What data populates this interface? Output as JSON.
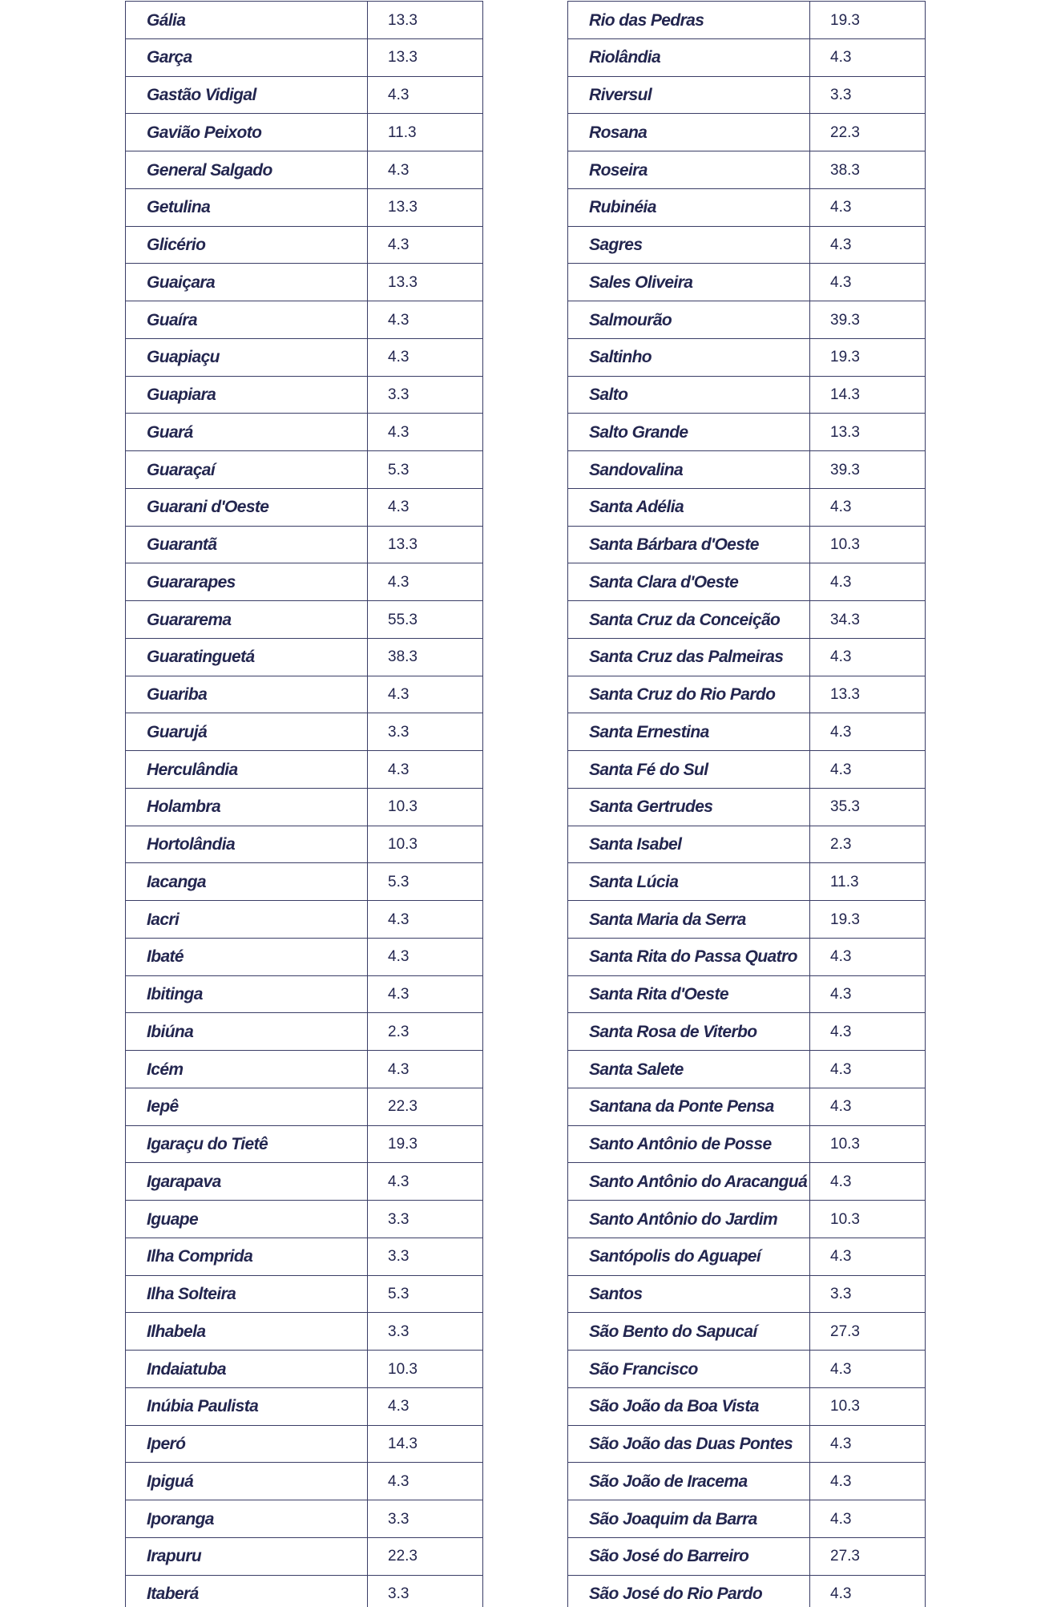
{
  "tables": [
    {
      "rows": [
        [
          "Gália",
          13.3
        ],
        [
          "Garça",
          13.3
        ],
        [
          "Gastão Vidigal",
          4.3
        ],
        [
          "Gavião Peixoto",
          11.3
        ],
        [
          "General Salgado",
          4.3
        ],
        [
          "Getulina",
          13.3
        ],
        [
          "Glicério",
          4.3
        ],
        [
          "Guaiçara",
          13.3
        ],
        [
          "Guaíra",
          4.3
        ],
        [
          "Guapiaçu",
          4.3
        ],
        [
          "Guapiara",
          3.3
        ],
        [
          "Guará",
          4.3
        ],
        [
          "Guaraçaí",
          5.3
        ],
        [
          "Guarani d'Oeste",
          4.3
        ],
        [
          "Guarantã",
          13.3
        ],
        [
          "Guararapes",
          4.3
        ],
        [
          "Guararema",
          55.3
        ],
        [
          "Guaratinguetá",
          38.3
        ],
        [
          "Guariba",
          4.3
        ],
        [
          "Guarujá",
          3.3
        ],
        [
          "Herculândia",
          4.3
        ],
        [
          "Holambra",
          10.3
        ],
        [
          "Hortolândia",
          10.3
        ],
        [
          "Iacanga",
          5.3
        ],
        [
          "Iacri",
          4.3
        ],
        [
          "Ibaté",
          4.3
        ],
        [
          "Ibitinga",
          4.3
        ],
        [
          "Ibiúna",
          2.3
        ],
        [
          "Icém",
          4.3
        ],
        [
          "Iepê",
          22.3
        ],
        [
          "Igaraçu do Tietê",
          19.3
        ],
        [
          "Igarapava",
          4.3
        ],
        [
          "Iguape",
          3.3
        ],
        [
          "Ilha Comprida",
          3.3
        ],
        [
          "Ilha Solteira",
          5.3
        ],
        [
          "Ilhabela",
          3.3
        ],
        [
          "Indaiatuba",
          10.3
        ],
        [
          "Inúbia Paulista",
          4.3
        ],
        [
          "Iperó",
          14.3
        ],
        [
          "Ipiguá",
          4.3
        ],
        [
          "Iporanga",
          3.3
        ],
        [
          "Irapuru",
          22.3
        ],
        [
          "Itaberá",
          3.3
        ]
      ]
    },
    {
      "rows": [
        [
          "Rio das Pedras",
          19.3
        ],
        [
          "Riolândia",
          4.3
        ],
        [
          "Riversul",
          3.3
        ],
        [
          "Rosana",
          22.3
        ],
        [
          "Roseira",
          38.3
        ],
        [
          "Rubinéia",
          4.3
        ],
        [
          "Sagres",
          4.3
        ],
        [
          "Sales Oliveira",
          4.3
        ],
        [
          "Salmourão",
          39.3
        ],
        [
          "Saltinho",
          19.3
        ],
        [
          "Salto",
          14.3
        ],
        [
          "Salto Grande",
          13.3
        ],
        [
          "Sandovalina",
          39.3
        ],
        [
          "Santa Adélia",
          4.3
        ],
        [
          "Santa Bárbara d'Oeste",
          10.3
        ],
        [
          "Santa Clara d'Oeste",
          4.3
        ],
        [
          "Santa Cruz da Conceição",
          34.3
        ],
        [
          "Santa Cruz das Palmeiras",
          4.3
        ],
        [
          "Santa Cruz do Rio Pardo",
          13.3
        ],
        [
          "Santa Ernestina",
          4.3
        ],
        [
          "Santa Fé do Sul",
          4.3
        ],
        [
          "Santa Gertrudes",
          35.3
        ],
        [
          "Santa Isabel",
          2.3
        ],
        [
          "Santa Lúcia",
          11.3
        ],
        [
          "Santa Maria da Serra",
          19.3
        ],
        [
          "Santa Rita do Passa Quatro",
          4.3
        ],
        [
          "Santa Rita d'Oeste",
          4.3
        ],
        [
          "Santa Rosa de Viterbo",
          4.3
        ],
        [
          "Santa Salete",
          4.3
        ],
        [
          "Santana da Ponte Pensa",
          4.3
        ],
        [
          "Santo Antônio de Posse",
          10.3
        ],
        [
          "Santo Antônio do Aracanguá",
          4.3
        ],
        [
          "Santo Antônio do Jardim",
          10.3
        ],
        [
          "Santópolis do Aguapeí",
          4.3
        ],
        [
          "Santos",
          3.3
        ],
        [
          "São Bento do Sapucaí",
          27.3
        ],
        [
          "São Francisco",
          4.3
        ],
        [
          "São João da Boa Vista",
          10.3
        ],
        [
          "São João das Duas Pontes",
          4.3
        ],
        [
          "São João de Iracema",
          4.3
        ],
        [
          "São Joaquim da Barra",
          4.3
        ],
        [
          "São José do Barreiro",
          27.3
        ],
        [
          "São José do Rio Pardo",
          4.3
        ]
      ]
    }
  ]
}
